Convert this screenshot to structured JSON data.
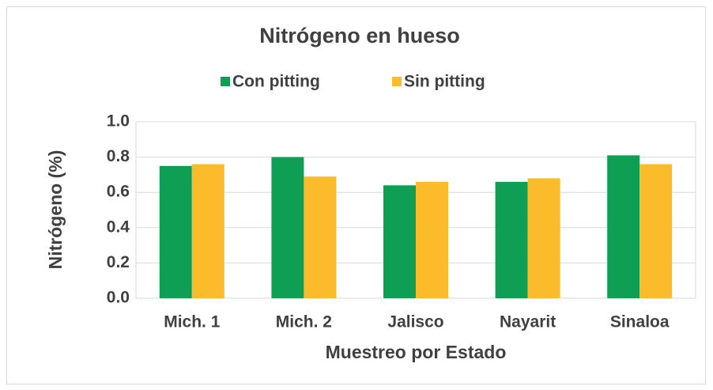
{
  "chart_data": {
    "type": "bar",
    "title": "Nitrógeno en hueso",
    "x_label": "Muestreo por Estado",
    "y_label": "Nitrógeno (%)",
    "categories": [
      "Mich. 1",
      "Mich. 2",
      "Jalisco",
      "Nayarit",
      "Sinaloa"
    ],
    "series": [
      {
        "name": "Con pitting",
        "color": "#0e9f55",
        "values": [
          0.75,
          0.8,
          0.64,
          0.66,
          0.81
        ]
      },
      {
        "name": "Sin pitting",
        "color": "#fbbc2c",
        "values": [
          0.76,
          0.69,
          0.66,
          0.68,
          0.76
        ]
      }
    ],
    "ylim": [
      0,
      1
    ],
    "yticks": [
      {
        "value": 0,
        "label": "0.0"
      },
      0.2,
      0.4,
      0.6,
      0.8,
      {
        "value": 1,
        "label": "1.0"
      }
    ],
    "grid": true,
    "legend": "top"
  }
}
